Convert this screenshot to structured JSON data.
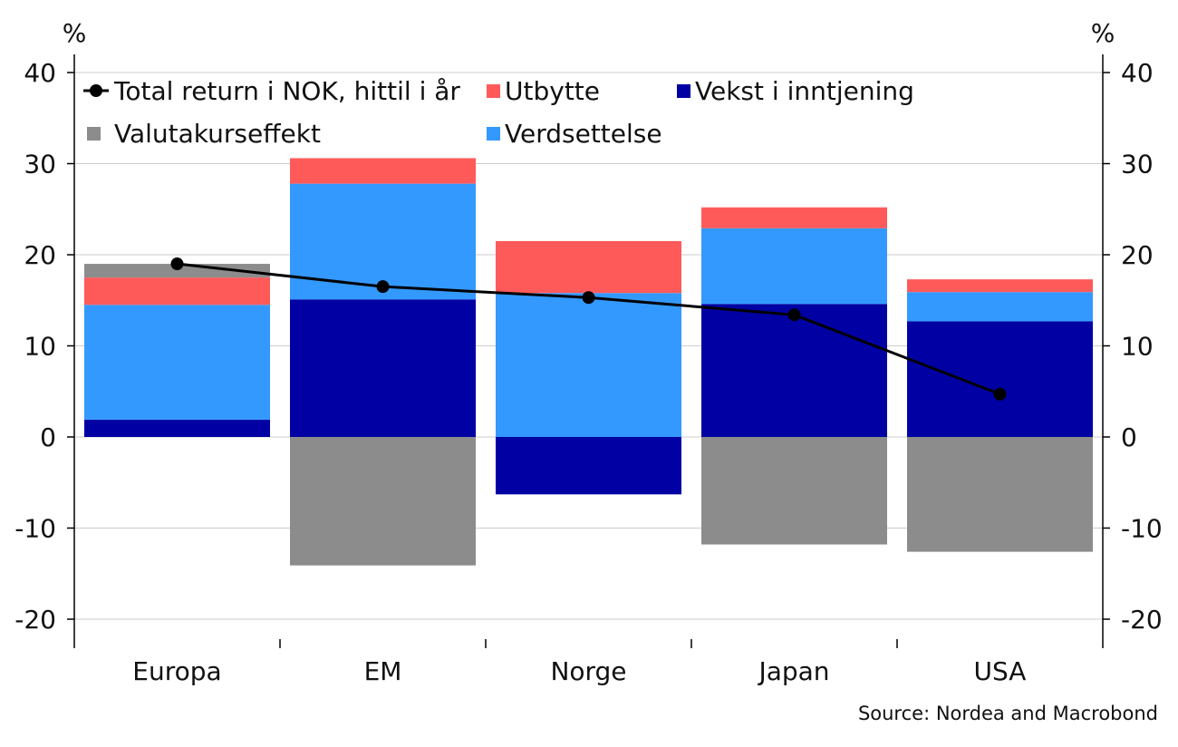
{
  "chart_data": {
    "type": "bar",
    "stacked": true,
    "categories": [
      "Europa",
      "EM",
      "Norge",
      "Japan",
      "USA"
    ],
    "series": [
      {
        "name": "Vekst i inntjening",
        "color": "#0000a3",
        "values": [
          1.9,
          15.1,
          -6.3,
          14.6,
          12.7
        ]
      },
      {
        "name": "Verdsettelse",
        "color": "#3399ff",
        "values": [
          12.6,
          12.7,
          15.8,
          8.3,
          3.2
        ]
      },
      {
        "name": "Utbytte",
        "color": "#ff5a5a",
        "values": [
          3.0,
          2.8,
          5.7,
          2.3,
          1.4
        ]
      },
      {
        "name": "Valutakurseffekt",
        "color": "#8c8c8c",
        "values": [
          1.5,
          -14.1,
          0,
          -11.8,
          -12.6
        ]
      }
    ],
    "line": {
      "name": "Total return i NOK, hittil i år",
      "color": "#000000",
      "values": [
        19.0,
        16.5,
        15.3,
        13.4,
        4.7
      ]
    },
    "ylabel_left": "%",
    "ylabel_right": "%",
    "ylim": [
      -22,
      40
    ],
    "yticks": [
      -20,
      -10,
      0,
      10,
      20,
      30,
      40
    ],
    "grid": true,
    "legend_placement": "top-left",
    "legend_order": [
      "Total return i NOK, hittil i år",
      "Utbytte",
      "Vekst i inntjening",
      "Valutakurseffekt",
      "Verdsettelse"
    ],
    "source": "Source: Nordea and Macrobond"
  }
}
